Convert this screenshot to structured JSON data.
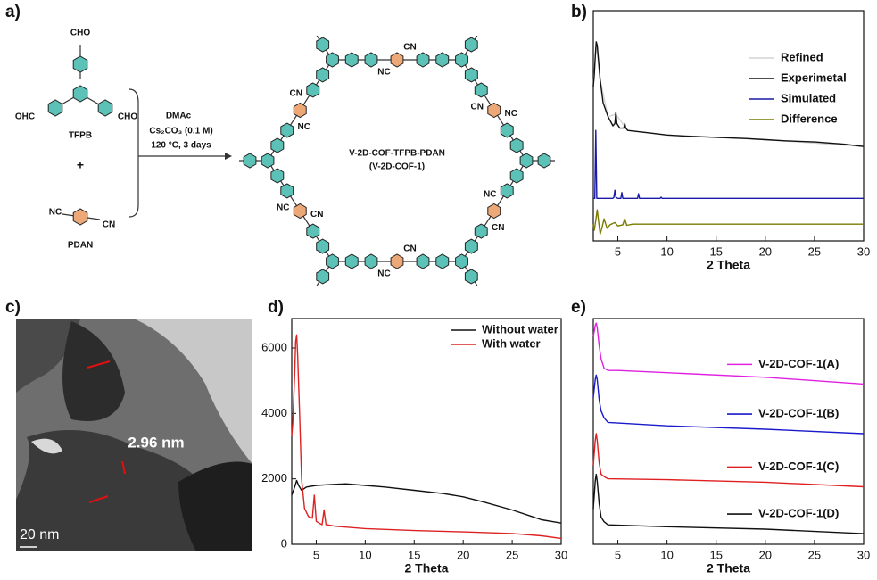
{
  "panel_labels": [
    "a)",
    "b)",
    "c)",
    "d)",
    "e)"
  ],
  "scheme": {
    "reactant_1": {
      "groups": [
        "CHO",
        "OHC",
        "CHO"
      ],
      "name": "TFPB"
    },
    "plus": "+",
    "reactant_2": {
      "groups": [
        "NC",
        "CN"
      ],
      "name": "PDAN"
    },
    "conditions": [
      "DMAc",
      "Cs₂CO₃ (0.1 M)",
      "120 °C, 3 days"
    ],
    "product": {
      "name": "V-2D-COF-TFPB-PDAN",
      "short_name": "(V-2D-COF-1)",
      "cyano_labels": [
        "NC",
        "CN",
        "CN",
        "NC",
        "CN",
        "NC",
        "NC",
        "CN",
        "NC",
        "CN",
        "CN",
        "NC"
      ]
    }
  },
  "tem": {
    "spacing_label": "2.96 nm",
    "scale_bar": "20 nm"
  },
  "chart_data": [
    {
      "type": "line",
      "xlabel": "2 Theta",
      "xlim": [
        2.5,
        30
      ],
      "xticks": [
        5,
        10,
        15,
        20,
        25,
        30
      ],
      "ylim": [
        0,
        100
      ],
      "legend": "upper right",
      "series": [
        {
          "name": "Refined",
          "color": "#d4d4d4",
          "x": [
            2.5,
            2.8,
            3.2,
            4,
            4.8,
            6,
            10,
            20,
            30
          ],
          "values": [
            67,
            86,
            70,
            54,
            55,
            48,
            46,
            44,
            41
          ]
        },
        {
          "name": "Experimetal",
          "color": "#111111",
          "x": [
            2.5,
            2.6,
            2.7,
            2.8,
            2.9,
            3.0,
            3.2,
            3.5,
            4.0,
            4.5,
            4.7,
            4.8,
            4.9,
            5.2,
            5.6,
            5.7,
            5.8,
            6.0,
            7,
            8,
            10,
            12,
            15,
            18,
            20,
            22,
            25,
            28,
            30
          ],
          "values": [
            67,
            72,
            80,
            86.5,
            85,
            80,
            70,
            60,
            54,
            50,
            51,
            56,
            51,
            49,
            49,
            51,
            49,
            48,
            47.5,
            47,
            46,
            45.5,
            45,
            44.5,
            44,
            43.5,
            43,
            42,
            41
          ]
        },
        {
          "name": "Simulated",
          "color": "#1a1aa8",
          "x": [
            2.5,
            2.65,
            2.75,
            2.85,
            3.0,
            4.5,
            4.6,
            4.7,
            4.8,
            5.0,
            5.3,
            5.4,
            5.5,
            7.0,
            7.1,
            7.2,
            9.3,
            9.4,
            9.5,
            30
          ],
          "values": [
            18.5,
            18.5,
            48,
            18.5,
            18.5,
            18.5,
            19,
            22,
            19,
            18.5,
            18.5,
            21,
            18.5,
            18.5,
            20.5,
            18.5,
            18.5,
            19,
            18.5,
            18.5
          ]
        },
        {
          "name": "Difference",
          "color": "#7a7a00",
          "x": [
            2.5,
            2.6,
            2.75,
            2.9,
            3.05,
            3.2,
            3.4,
            3.6,
            3.9,
            4.2,
            4.7,
            5.0,
            5.5,
            5.7,
            5.9,
            6.5,
            8,
            30
          ],
          "values": [
            7.3,
            4.6,
            9,
            13.5,
            8,
            3,
            6,
            9.6,
            5.5,
            7,
            8,
            6.5,
            7,
            9.6,
            6.8,
            7.3,
            7.3,
            7.3
          ]
        }
      ]
    },
    {
      "type": "line",
      "xlabel": "2 Theta",
      "xlim": [
        2.5,
        30
      ],
      "xticks": [
        5,
        10,
        15,
        20,
        25,
        30
      ],
      "ylim": [
        0,
        6900
      ],
      "yticks": [
        0,
        2000,
        4000,
        6000
      ],
      "legend": "upper right",
      "series": [
        {
          "name": "Without water",
          "color": "#111111",
          "x": [
            2.5,
            2.8,
            3.0,
            3.2,
            3.5,
            4,
            5,
            6,
            8,
            10,
            12,
            15,
            18,
            20,
            22,
            25,
            27,
            28,
            29,
            30
          ],
          "values": [
            1500,
            1750,
            1950,
            1800,
            1650,
            1750,
            1800,
            1820,
            1850,
            1800,
            1750,
            1650,
            1550,
            1450,
            1300,
            1050,
            850,
            750,
            700,
            650
          ]
        },
        {
          "name": "With water",
          "color": "#dd2222",
          "x": [
            2.5,
            2.6,
            2.8,
            2.9,
            3.0,
            3.1,
            3.3,
            3.5,
            3.8,
            4.2,
            4.6,
            4.8,
            5.0,
            5.3,
            5.6,
            5.8,
            6.0,
            7,
            10,
            15,
            20,
            25,
            28,
            30
          ],
          "values": [
            3300,
            3700,
            5200,
            6200,
            6400,
            5800,
            4000,
            2000,
            1100,
            850,
            800,
            1500,
            700,
            650,
            600,
            1050,
            600,
            550,
            480,
            420,
            380,
            330,
            260,
            180
          ]
        }
      ]
    },
    {
      "type": "line",
      "xlabel": "2 Theta",
      "xlim": [
        2.5,
        30
      ],
      "xticks": [
        5,
        10,
        15,
        20,
        25,
        30
      ],
      "ylim": [
        0,
        100
      ],
      "legend": "inline",
      "series": [
        {
          "name": "V-2D-COF-1(A)",
          "color": "#e020e0",
          "x": [
            2.5,
            2.7,
            2.8,
            2.9,
            3.1,
            3.3,
            3.6,
            4,
            5,
            10,
            20,
            30
          ],
          "values": [
            92,
            97,
            98,
            96,
            88,
            82,
            78,
            77,
            77,
            76,
            74,
            71
          ]
        },
        {
          "name": "V-2D-COF-1(B)",
          "color": "#1a1acc",
          "x": [
            2.5,
            2.7,
            2.8,
            2.9,
            3.1,
            3.3,
            3.6,
            4,
            10,
            20,
            30
          ],
          "values": [
            65,
            73,
            75,
            73,
            64,
            59,
            56,
            54,
            52.5,
            51,
            49
          ]
        },
        {
          "name": "V-2D-COF-1(C)",
          "color": "#e02020",
          "x": [
            2.5,
            2.7,
            2.8,
            2.9,
            3.1,
            3.3,
            3.6,
            4,
            10,
            20,
            30
          ],
          "values": [
            35,
            46,
            49,
            46,
            36,
            31,
            30,
            29,
            28.6,
            27.5,
            25.5
          ]
        },
        {
          "name": "V-2D-COF-1(D)",
          "color": "#111111",
          "x": [
            2.5,
            2.7,
            2.8,
            2.9,
            3.1,
            3.3,
            3.6,
            4,
            10,
            20,
            30
          ],
          "values": [
            15.7,
            28,
            31,
            28,
            18,
            12,
            10,
            8.6,
            7.8,
            6.7,
            4.7
          ]
        }
      ]
    }
  ]
}
